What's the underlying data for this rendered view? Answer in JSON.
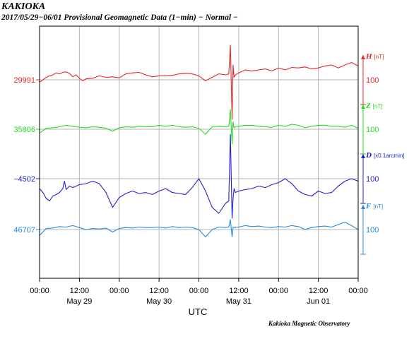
{
  "header": {
    "station": "KAKIOKA",
    "subtitle": "2017/05/29−06/01  Provisional Geomagnetic Data (1−min)  − Normal −"
  },
  "footer": {
    "credit": "Kakioka Magnetic Observatory"
  },
  "colors": {
    "H": "#e8262c",
    "Z": "#22dd22",
    "D": "#2222cc",
    "F": "#2a8ad8",
    "grid": "#b4b4b4",
    "frame": "#000000"
  },
  "chart_data": {
    "type": "line",
    "xlabel": "UTC",
    "x_ticks": [
      "00:00",
      "12:00",
      "00:00",
      "12:00",
      "00:00",
      "12:00",
      "00:00",
      "12:00",
      "00:00"
    ],
    "day_labels": [
      "May 29",
      "May 30",
      "May 31",
      "Jun 01"
    ],
    "x_range_hours": [
      0,
      96
    ],
    "series": [
      {
        "key": "H",
        "name": "H",
        "unit": "[nT]",
        "baseline_label": "29991",
        "scale_label": "100",
        "scale_nT": 100,
        "points_hours": [
          0,
          1,
          2,
          3,
          4,
          5,
          6,
          7,
          8,
          9,
          10,
          11,
          12,
          13,
          14,
          16,
          18,
          20,
          22,
          24,
          26,
          28,
          30,
          32,
          34,
          36,
          38,
          40,
          42,
          44,
          46,
          48,
          50,
          52,
          54,
          56,
          57,
          57.5,
          58,
          58.3,
          58.6,
          59,
          60,
          62,
          64,
          66,
          68,
          70,
          72,
          74,
          76,
          78,
          80,
          82,
          84,
          86,
          88,
          90,
          92,
          94,
          96
        ],
        "values": [
          -5,
          0,
          5,
          8,
          10,
          14,
          12,
          15,
          16,
          13,
          6,
          10,
          3,
          -2,
          2,
          3,
          8,
          5,
          6,
          4,
          12,
          14,
          15,
          10,
          6,
          8,
          8,
          9,
          12,
          13,
          12,
          8,
          -2,
          5,
          12,
          10,
          12,
          70,
          -80,
          30,
          5,
          10,
          14,
          20,
          18,
          20,
          22,
          18,
          24,
          20,
          25,
          24,
          26,
          22,
          24,
          28,
          30,
          24,
          30,
          35,
          28
        ]
      },
      {
        "key": "Z",
        "name": "Z",
        "unit": "[nT]",
        "baseline_label": "35806",
        "scale_label": "100",
        "scale_nT": 100,
        "points_hours": [
          0,
          1,
          2,
          4,
          6,
          8,
          10,
          12,
          14,
          16,
          18,
          20,
          22,
          24,
          26,
          28,
          30,
          32,
          34,
          36,
          38,
          40,
          42,
          44,
          46,
          48,
          50,
          52,
          54,
          56,
          57,
          57.5,
          58,
          58.3,
          58.6,
          59,
          60,
          62,
          64,
          66,
          68,
          70,
          72,
          74,
          76,
          78,
          80,
          82,
          84,
          86,
          88,
          90,
          92,
          94,
          96
        ],
        "values": [
          -8,
          -3,
          2,
          3,
          5,
          8,
          6,
          4,
          3,
          5,
          4,
          2,
          -4,
          3,
          5,
          4,
          6,
          5,
          5,
          8,
          6,
          8,
          5,
          4,
          5,
          2,
          -10,
          5,
          6,
          5,
          6,
          40,
          -30,
          15,
          3,
          5,
          6,
          8,
          8,
          6,
          5,
          4,
          8,
          6,
          10,
          8,
          3,
          6,
          8,
          8,
          6,
          6,
          4,
          8,
          2
        ]
      },
      {
        "key": "D",
        "name": "D",
        "unit": "[x0.1arcmin]",
        "baseline_label": "−4502",
        "scale_label": "100",
        "scale_nT": 100,
        "points_hours": [
          0,
          1,
          2,
          3,
          4,
          5,
          6,
          7,
          7.5,
          8,
          9,
          10,
          12,
          14,
          16,
          18,
          20,
          22,
          24,
          26,
          28,
          30,
          32,
          34,
          36,
          38,
          40,
          42,
          44,
          46,
          48,
          50,
          52,
          54,
          56,
          57,
          57.5,
          58,
          58.3,
          58.6,
          59,
          60,
          62,
          64,
          66,
          68,
          70,
          72,
          74,
          76,
          78,
          80,
          82,
          84,
          86,
          88,
          90,
          92,
          94,
          96
        ],
        "values": [
          -20,
          -28,
          -40,
          -45,
          -35,
          -32,
          -28,
          -20,
          -5,
          -22,
          -15,
          -18,
          -12,
          -10,
          -5,
          -10,
          -28,
          -58,
          -38,
          -30,
          -25,
          -30,
          -28,
          -32,
          -25,
          -20,
          -28,
          -30,
          -32,
          -18,
          0,
          -25,
          -58,
          -70,
          -50,
          -45,
          90,
          -80,
          -40,
          -20,
          -28,
          -25,
          -22,
          -20,
          -15,
          -18,
          -12,
          -8,
          0,
          -10,
          -25,
          -32,
          -35,
          -25,
          -30,
          -28,
          -15,
          -5,
          0,
          -5
        ]
      },
      {
        "key": "F",
        "name": "F",
        "unit": "[nT]",
        "baseline_label": "46707",
        "scale_label": "100",
        "scale_nT": 100,
        "points_hours": [
          0,
          1,
          2,
          4,
          6,
          8,
          10,
          12,
          14,
          16,
          18,
          20,
          22,
          24,
          26,
          28,
          30,
          32,
          34,
          36,
          38,
          40,
          42,
          44,
          46,
          48,
          50,
          52,
          54,
          56,
          57,
          57.5,
          58,
          58.3,
          59,
          60,
          62,
          64,
          66,
          68,
          70,
          72,
          74,
          76,
          78,
          80,
          82,
          84,
          86,
          88,
          90,
          92,
          94,
          96
        ],
        "values": [
          -12,
          -5,
          2,
          3,
          6,
          5,
          8,
          4,
          0,
          2,
          1,
          3,
          -5,
          2,
          4,
          3,
          5,
          4,
          4,
          5,
          3,
          6,
          4,
          5,
          4,
          0,
          -15,
          0,
          5,
          4,
          5,
          20,
          -15,
          5,
          4,
          5,
          8,
          6,
          7,
          5,
          4,
          6,
          5,
          8,
          6,
          0,
          4,
          6,
          7,
          5,
          10,
          15,
          8,
          0
        ]
      }
    ]
  }
}
